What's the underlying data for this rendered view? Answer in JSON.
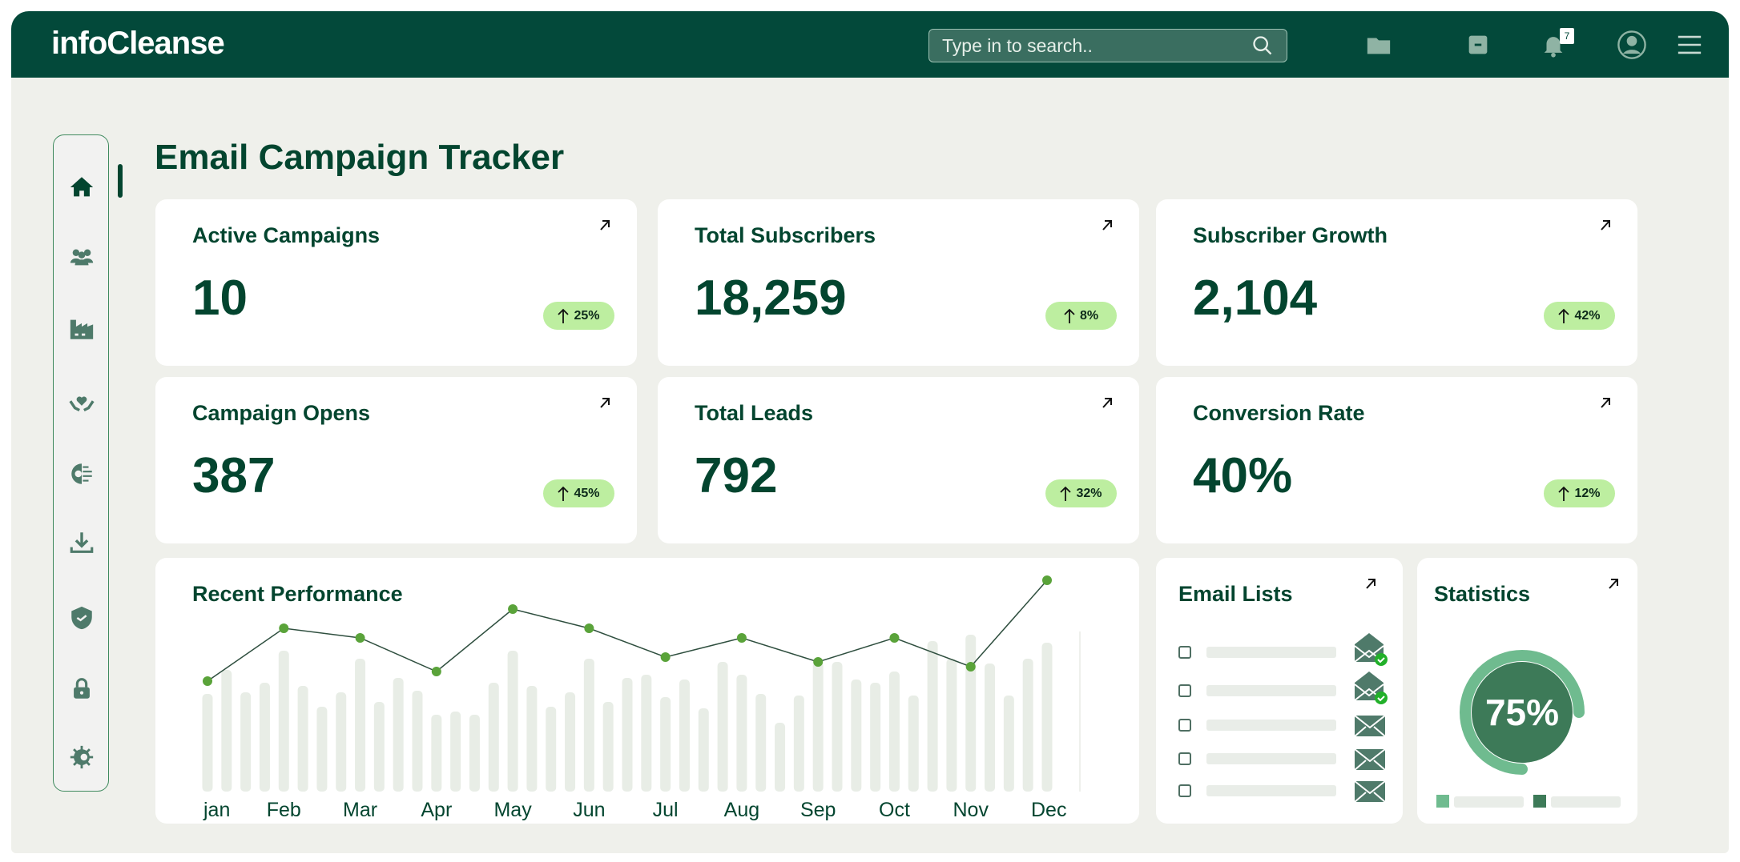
{
  "header": {
    "logo": "infoCleanse",
    "search_placeholder": "Type in to search..",
    "notification_count": "7",
    "icons": [
      "search-icon",
      "folder-icon",
      "archive-icon",
      "bell-icon",
      "user-icon",
      "menu-icon"
    ]
  },
  "sidebar": {
    "items": [
      "home",
      "users",
      "factory",
      "care",
      "tech-gear",
      "download",
      "shield-check",
      "lock",
      "settings"
    ],
    "active": "home"
  },
  "page_title": "Email Campaign Tracker",
  "colors": {
    "primary": "#03493a",
    "badge": "#bdeea0",
    "ring": "#6fbb8f",
    "ring_inner": "#3d7a58",
    "point": "#5aa33a"
  },
  "cards": [
    {
      "label": "Active Campaigns",
      "value": "10",
      "change": "25%"
    },
    {
      "label": "Total Subscribers",
      "value": "18,259",
      "change": "8%"
    },
    {
      "label": "Subscriber Growth",
      "value": "2,104",
      "change": "42%"
    },
    {
      "label": "Campaign Opens",
      "value": "387",
      "change": "45%"
    },
    {
      "label": "Total Leads",
      "value": "792",
      "change": "32%"
    },
    {
      "label": "Conversion Rate",
      "value": "40%",
      "change": "12%"
    }
  ],
  "performance": {
    "title": "Recent Performance"
  },
  "chart_data": {
    "type": "bar+line",
    "title": "Recent Performance",
    "categories": [
      "jan",
      "Feb",
      "Mar",
      "Apr",
      "May",
      "Jun",
      "Jul",
      "Aug",
      "Sep",
      "Oct",
      "Nov",
      "Dec"
    ],
    "bars": [
      61,
      76,
      62,
      68,
      88,
      66,
      53,
      62,
      83,
      56,
      71,
      63,
      48,
      50,
      48,
      68,
      88,
      66,
      53,
      62,
      83,
      56,
      71,
      73,
      59,
      70,
      52,
      81,
      73,
      61,
      43,
      60,
      81,
      81,
      70,
      68,
      75,
      60,
      94,
      83,
      98,
      80,
      60,
      83,
      93
    ],
    "line": [
      23,
      34,
      32,
      25,
      38,
      34,
      28,
      32,
      27,
      32,
      26,
      44
    ],
    "ylim": [
      0,
      100
    ],
    "grid": false
  },
  "email_lists": {
    "title": "Email Lists",
    "rows": [
      {
        "status": "opened-checked"
      },
      {
        "status": "opened-checked"
      },
      {
        "status": "closed"
      },
      {
        "status": "closed"
      },
      {
        "status": "closed"
      }
    ]
  },
  "statistics": {
    "title": "Statistics",
    "value": "75%",
    "progress": 75
  }
}
